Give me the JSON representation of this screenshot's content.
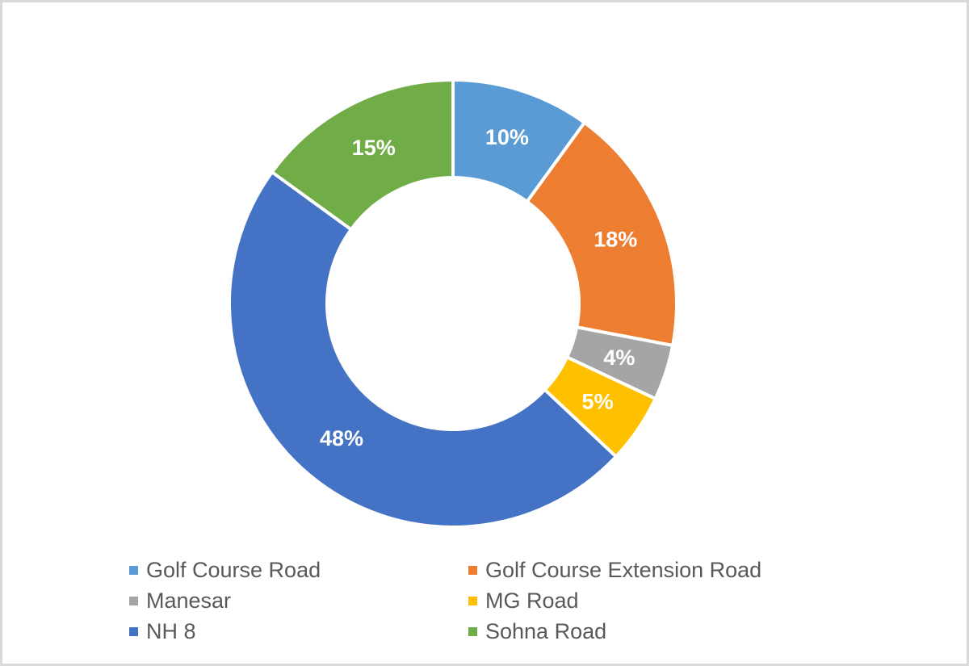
{
  "chart_data": {
    "type": "pie",
    "variant": "donut",
    "title": "",
    "categories": [
      "Golf Course Road",
      "Golf Course Extension Road",
      "Manesar",
      "MG Road",
      "NH 8",
      "Sohna Road"
    ],
    "values": [
      10,
      18,
      4,
      5,
      48,
      15
    ],
    "labels": [
      "10%",
      "18%",
      "4%",
      "5%",
      "48%",
      "15%"
    ],
    "colors": [
      "#5b9bd5",
      "#ed7d31",
      "#a5a5a5",
      "#ffc000",
      "#4472c4",
      "#70ad47"
    ],
    "legend_position": "bottom",
    "legend": [
      {
        "label": "Golf Course Road",
        "color": "#5b9bd5"
      },
      {
        "label": "Golf Course Extension Road",
        "color": "#ed7d31"
      },
      {
        "label": "Manesar",
        "color": "#a5a5a5"
      },
      {
        "label": "MG Road",
        "color": "#ffc000"
      },
      {
        "label": "NH 8",
        "color": "#4472c4"
      },
      {
        "label": "Sohna Road",
        "color": "#70ad47"
      }
    ]
  }
}
